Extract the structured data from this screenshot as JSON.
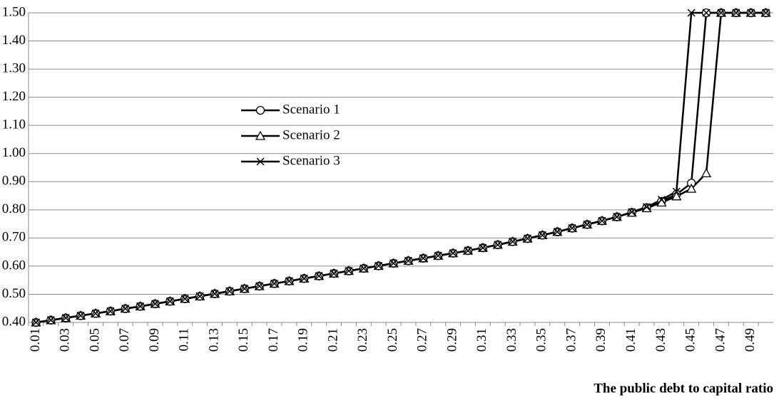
{
  "chart_data": {
    "type": "line",
    "x_label": "The public debt to capital ratio",
    "categories": [
      "0.01",
      null,
      "0.03",
      null,
      "0.05",
      null,
      "0.07",
      null,
      "0.09",
      null,
      "0.11",
      null,
      "0.13",
      null,
      "0.15",
      null,
      "0.17",
      null,
      "0.19",
      null,
      "0.21",
      null,
      "0.23",
      null,
      "0.25",
      null,
      "0.27",
      null,
      "0.29",
      null,
      "0.31",
      null,
      "0.33",
      null,
      "0.35",
      null,
      "0.37",
      null,
      "0.39",
      null,
      "0.41",
      null,
      "0.43",
      null,
      "0.45",
      null,
      "0.47",
      null,
      "0.49",
      null
    ],
    "ylim": [
      0.4,
      1.5
    ],
    "yticks": [
      {
        "value": 0.4,
        "label": "0.40"
      },
      {
        "value": 0.5,
        "label": "0.50"
      },
      {
        "value": 0.6,
        "label": "0.60"
      },
      {
        "value": 0.7,
        "label": "0.70"
      },
      {
        "value": 0.8,
        "label": "0.80"
      },
      {
        "value": 0.9,
        "label": "0.90"
      },
      {
        "value": 1.0,
        "label": "1.00"
      },
      {
        "value": 1.1,
        "label": "1.10"
      },
      {
        "value": 1.2,
        "label": "1.20"
      },
      {
        "value": 1.3,
        "label": "1.30"
      },
      {
        "value": 1.4,
        "label": "1.40"
      },
      {
        "value": 1.5,
        "label": "1.50"
      }
    ],
    "grid": true,
    "series": [
      {
        "name": "Scenario 1",
        "color": "#000000",
        "marker": "circle",
        "values": [
          0.4,
          0.408,
          0.416,
          0.424,
          0.432,
          0.44,
          0.449,
          0.457,
          0.466,
          0.475,
          0.484,
          0.493,
          0.502,
          0.511,
          0.52,
          0.529,
          0.538,
          0.547,
          0.556,
          0.565,
          0.574,
          0.583,
          0.592,
          0.601,
          0.61,
          0.619,
          0.628,
          0.637,
          0.646,
          0.655,
          0.665,
          0.676,
          0.687,
          0.698,
          0.71,
          0.722,
          0.735,
          0.748,
          0.761,
          0.775,
          0.791,
          0.808,
          0.83,
          0.855,
          0.895,
          1.5,
          1.5,
          1.5,
          1.5,
          1.5
        ]
      },
      {
        "name": "Scenario 2",
        "color": "#000000",
        "marker": "triangle",
        "values": [
          0.4,
          0.408,
          0.416,
          0.424,
          0.432,
          0.44,
          0.449,
          0.457,
          0.466,
          0.475,
          0.484,
          0.493,
          0.502,
          0.511,
          0.52,
          0.529,
          0.538,
          0.547,
          0.556,
          0.565,
          0.574,
          0.583,
          0.592,
          0.601,
          0.61,
          0.619,
          0.628,
          0.637,
          0.646,
          0.655,
          0.665,
          0.676,
          0.687,
          0.698,
          0.71,
          0.722,
          0.735,
          0.748,
          0.761,
          0.775,
          0.79,
          0.806,
          0.826,
          0.848,
          0.875,
          0.93,
          1.5,
          1.5,
          1.5,
          1.5
        ]
      },
      {
        "name": "Scenario 3",
        "color": "#000000",
        "marker": "cross",
        "values": [
          0.4,
          0.408,
          0.416,
          0.424,
          0.432,
          0.44,
          0.449,
          0.457,
          0.466,
          0.475,
          0.484,
          0.493,
          0.502,
          0.511,
          0.52,
          0.529,
          0.538,
          0.547,
          0.556,
          0.565,
          0.574,
          0.583,
          0.592,
          0.601,
          0.61,
          0.619,
          0.628,
          0.637,
          0.646,
          0.655,
          0.665,
          0.676,
          0.687,
          0.698,
          0.71,
          0.722,
          0.735,
          0.748,
          0.761,
          0.775,
          0.792,
          0.81,
          0.836,
          0.865,
          1.5,
          1.5,
          1.5,
          1.5,
          1.5,
          1.5
        ]
      }
    ]
  }
}
